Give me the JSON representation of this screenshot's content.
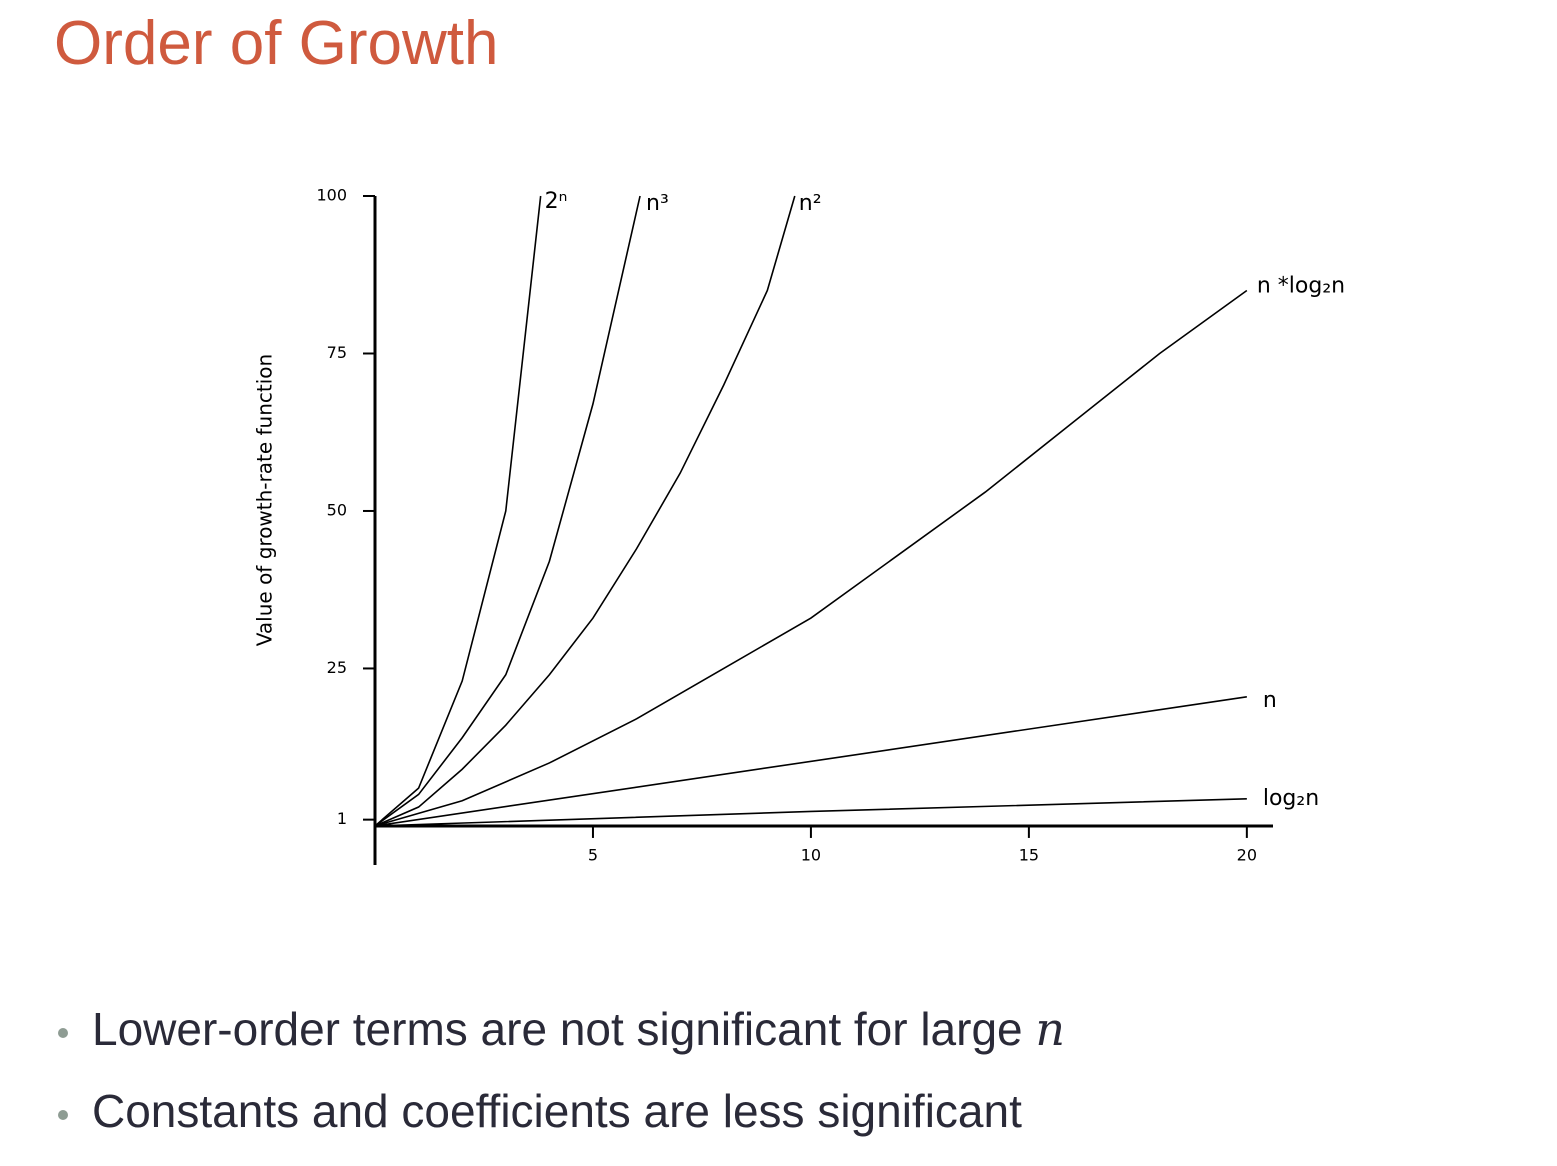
{
  "title": "Order of Growth",
  "chart_data": {
    "type": "line",
    "y_label": "Value of growth-rate function",
    "xlim": [
      0,
      20.6
    ],
    "xticks": [
      5,
      10,
      15,
      20
    ],
    "ylim": [
      -6.2,
      100
    ],
    "yticks": [
      1,
      25,
      50,
      75,
      100
    ],
    "grid": false,
    "series": [
      {
        "name": "2ⁿ",
        "color": "#000000",
        "x": [
          0,
          1,
          2,
          3,
          3.8
        ],
        "values": [
          0,
          6,
          23,
          50,
          100
        ]
      },
      {
        "name": "n³",
        "color": "#000000",
        "x": [
          0,
          1,
          2,
          3,
          4,
          5,
          6.08
        ],
        "values": [
          0,
          5,
          14,
          24,
          42,
          67,
          100
        ]
      },
      {
        "name": "n²",
        "color": "#000000",
        "x": [
          0,
          1,
          2,
          3,
          4,
          5,
          6,
          7,
          8,
          9,
          9.63
        ],
        "values": [
          0,
          3,
          9,
          16,
          24,
          33,
          44,
          56,
          70,
          85,
          100
        ]
      },
      {
        "name": "n *log₂n",
        "color": "#000000",
        "x": [
          0,
          2,
          4,
          6,
          8,
          10,
          12,
          14,
          16,
          18,
          20
        ],
        "values": [
          0,
          4,
          10,
          17,
          25,
          33,
          43,
          53,
          64,
          75,
          85
        ]
      },
      {
        "name": "n",
        "color": "#000000",
        "x": [
          0,
          20
        ],
        "values": [
          0,
          20.5
        ]
      },
      {
        "name": "log₂n",
        "color": "#000000",
        "x": [
          0,
          10,
          20
        ],
        "values": [
          0,
          2.3,
          4.3
        ]
      }
    ]
  },
  "bullets": [
    {
      "text": "Lower-order terms are not significant for large ",
      "math": "n"
    },
    {
      "text": "Constants and coefficients are less significant"
    }
  ]
}
